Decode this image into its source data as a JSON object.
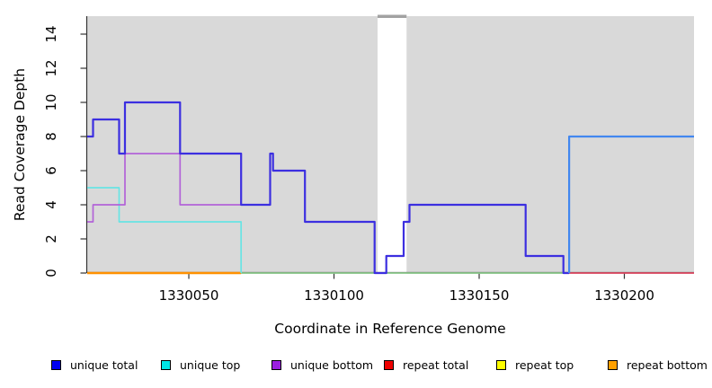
{
  "chart_data": {
    "type": "line",
    "subtype": "step-coverage",
    "title": "",
    "xlabel": "Coordinate in Reference Genome",
    "ylabel": "Read Coverage Depth",
    "xlim": [
      1330015,
      1330224
    ],
    "ylim": [
      0,
      15
    ],
    "x_ticks": [
      1330050,
      1330100,
      1330150,
      1330200
    ],
    "x_tick_labels": [
      "1330050",
      "1330100",
      "1330150",
      "1330200"
    ],
    "y_ticks": [
      0,
      2,
      4,
      6,
      8,
      10,
      12,
      14
    ],
    "y_tick_labels": [
      "0",
      "2",
      "4",
      "6",
      "8",
      "10",
      "12",
      "14"
    ],
    "grid": false,
    "plot_bg": "#d9d9d9",
    "axis_color": "#333333",
    "gap_region": {
      "x_start": 1330115,
      "x_end": 1330125,
      "fill": "#ffffff",
      "cap_color": "#a2a2a2"
    },
    "series": [
      {
        "name": "unique total",
        "steps": [
          [
            1330015,
            8
          ],
          [
            1330017,
            9
          ],
          [
            1330026,
            7
          ],
          [
            1330028,
            10
          ],
          [
            1330047,
            7
          ],
          [
            1330068,
            4
          ],
          [
            1330078,
            7
          ],
          [
            1330079,
            6
          ],
          [
            1330090,
            3
          ],
          [
            1330114,
            0
          ],
          [
            1330118,
            1
          ],
          [
            1330124,
            3
          ],
          [
            1330126,
            4
          ],
          [
            1330166,
            1
          ],
          [
            1330179,
            0
          ],
          [
            1330181,
            8
          ],
          [
            1330224,
            8
          ]
        ]
      },
      {
        "name": "unique top",
        "steps": [
          [
            1330015,
            5
          ],
          [
            1330026,
            3
          ],
          [
            1330068,
            0
          ],
          [
            1330181,
            8
          ],
          [
            1330224,
            8
          ]
        ]
      },
      {
        "name": "unique bottom",
        "steps": [
          [
            1330015,
            3
          ],
          [
            1330017,
            4
          ],
          [
            1330028,
            7
          ],
          [
            1330047,
            4
          ],
          [
            1330078,
            7
          ],
          [
            1330079,
            6
          ],
          [
            1330090,
            3
          ],
          [
            1330114,
            0
          ],
          [
            1330118,
            1
          ],
          [
            1330124,
            3
          ],
          [
            1330126,
            4
          ],
          [
            1330166,
            1
          ],
          [
            1330179,
            0
          ],
          [
            1330224,
            0
          ]
        ]
      },
      {
        "name": "repeat total",
        "steps": [
          [
            1330015,
            0
          ],
          [
            1330224,
            0
          ]
        ]
      },
      {
        "name": "repeat top",
        "steps": [
          [
            1330015,
            0
          ],
          [
            1330224,
            0
          ]
        ]
      },
      {
        "name": "repeat bottom",
        "steps": [
          [
            1330015,
            0
          ],
          [
            1330224,
            0
          ]
        ]
      }
    ],
    "render_segments": [
      {
        "name": "baseline-repeat-bottom-orange",
        "color": "#ff9100",
        "width": 2.4,
        "steps": [
          [
            1330015,
            0
          ],
          [
            1330068,
            0
          ]
        ]
      },
      {
        "name": "baseline-overlap-green",
        "color": "#8bca8b",
        "width": 1.8,
        "steps": [
          [
            1330068,
            0
          ],
          [
            1330181,
            0
          ]
        ]
      },
      {
        "name": "baseline-overlap-crimson",
        "color": "#e04a63",
        "width": 1.8,
        "steps": [
          [
            1330181,
            0
          ],
          [
            1330224,
            0
          ]
        ]
      },
      {
        "name": "line-unique-top-cyan",
        "color": "#68e4e4",
        "width": 1.7,
        "steps": [
          [
            1330015,
            5
          ],
          [
            1330026,
            3
          ],
          [
            1330068,
            0
          ]
        ]
      },
      {
        "name": "line-unique-bottom-purple",
        "color": "#b263d8",
        "width": 1.7,
        "steps": [
          [
            1330015,
            3
          ],
          [
            1330017,
            4
          ],
          [
            1330028,
            7
          ],
          [
            1330047,
            4
          ],
          [
            1330068,
            4
          ]
        ]
      },
      {
        "name": "line-unique-total-blue",
        "color": "#3c2fe0",
        "width": 2.2,
        "steps": [
          [
            1330015,
            8
          ],
          [
            1330017,
            9
          ],
          [
            1330026,
            7
          ],
          [
            1330028,
            10
          ],
          [
            1330047,
            7
          ],
          [
            1330068,
            4
          ],
          [
            1330078,
            7
          ],
          [
            1330079,
            6
          ],
          [
            1330090,
            3
          ],
          [
            1330114,
            0
          ],
          [
            1330118,
            1
          ],
          [
            1330124,
            3
          ],
          [
            1330126,
            4
          ],
          [
            1330166,
            1
          ],
          [
            1330179,
            0
          ],
          [
            1330181,
            0
          ]
        ]
      },
      {
        "name": "line-total-top-overlap-azure",
        "color": "#4287ef",
        "width": 2.2,
        "steps": [
          [
            1330181,
            0
          ],
          [
            1330181,
            8
          ],
          [
            1330224,
            8
          ]
        ]
      }
    ],
    "legend": [
      {
        "label": "unique total",
        "color": "#0000f0"
      },
      {
        "label": "unique top",
        "color": "#00e6e6"
      },
      {
        "label": "unique bottom",
        "color": "#9b1fe0"
      },
      {
        "label": "repeat total",
        "color": "#ee0000"
      },
      {
        "label": "repeat top",
        "color": "#ffff00"
      },
      {
        "label": "repeat bottom",
        "color": "#ffa000"
      }
    ],
    "legend_position": "bottom"
  }
}
